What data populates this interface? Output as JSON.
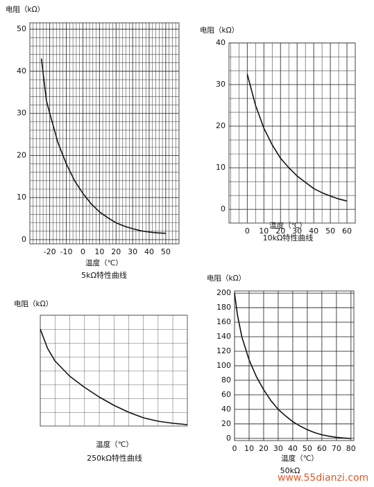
{
  "chart_data": [
    {
      "type": "line",
      "y_label": "电阻（kΩ）",
      "x_label": "温度（℃）",
      "title": "5kΩ特性曲线",
      "x": [
        -25,
        -22,
        -20,
        -15,
        -10,
        -5,
        0,
        5,
        10,
        15,
        20,
        25,
        30,
        35,
        40,
        45,
        50
      ],
      "values": [
        43,
        33,
        30,
        23,
        18,
        14,
        11,
        8.5,
        6.6,
        5.2,
        4,
        3.2,
        2.6,
        2.1,
        1.8,
        1.6,
        1.5
      ],
      "xlim": [
        -32,
        58
      ],
      "ylim": [
        -1,
        51.5
      ],
      "xticks": [
        -20,
        -10,
        0,
        10,
        20,
        30,
        40,
        50
      ],
      "yticks": [
        0,
        10,
        20,
        30,
        40,
        50
      ],
      "grid": true,
      "x_subdivisions": 5,
      "y_subdivisions": 5,
      "color": "#111111"
    },
    {
      "type": "line",
      "y_label": "电阻（kΩ）",
      "x_label": "温度（℃）",
      "title": "10kΩ特性曲线",
      "x": [
        0,
        5,
        10,
        15,
        20,
        25,
        30,
        35,
        40,
        45,
        50,
        55,
        60
      ],
      "values": [
        32.5,
        25,
        19.5,
        15.5,
        12.3,
        10,
        8,
        6.5,
        5,
        4,
        3.2,
        2.5,
        2
      ],
      "xlim": [
        -11,
        65
      ],
      "ylim": [
        -3.3,
        40
      ],
      "xticks": [
        0,
        10,
        20,
        30,
        40,
        50,
        60
      ],
      "yticks": [
        0,
        10,
        20,
        30,
        40
      ],
      "grid": true,
      "x_subdivisions": 2,
      "y_subdivisions": 3,
      "color": "#111111"
    },
    {
      "type": "line",
      "y_label": "电阻（kΩ）",
      "x_label": "温度（℃）",
      "title": "250kΩ特性曲线",
      "x": [
        0,
        0.5,
        1,
        2,
        3,
        4,
        5,
        6,
        7,
        8,
        9,
        10
      ],
      "values": [
        7,
        5.6,
        4.7,
        3.6,
        2.8,
        2.1,
        1.5,
        1.0,
        0.6,
        0.35,
        0.2,
        0.1
      ],
      "xlim": [
        0,
        10
      ],
      "ylim": [
        0,
        8
      ],
      "grid": true,
      "color": "#111111"
    },
    {
      "type": "line",
      "y_label": "电阻（kΩ）",
      "x_label": "温度（℃）",
      "title": "50kΩ",
      "x": [
        0,
        2,
        5,
        10,
        15,
        20,
        25,
        30,
        35,
        40,
        45,
        50,
        55,
        60,
        65,
        70,
        75,
        80
      ],
      "values": [
        200,
        170,
        140,
        108,
        85,
        67,
        52,
        40,
        31,
        23,
        17,
        12,
        8,
        5,
        3,
        1.5,
        0.5,
        0
      ],
      "xlim": [
        0,
        82
      ],
      "ylim": [
        -3,
        203
      ],
      "xticks": [
        0,
        10,
        20,
        30,
        40,
        50,
        60,
        70,
        80
      ],
      "yticks": [
        0,
        20,
        40,
        60,
        80,
        100,
        120,
        140,
        160,
        180,
        200
      ],
      "grid": true,
      "x_subdivisions": 1,
      "y_subdivisions": 1,
      "color": "#111111"
    }
  ],
  "watermark": "www.55dianzi.com"
}
